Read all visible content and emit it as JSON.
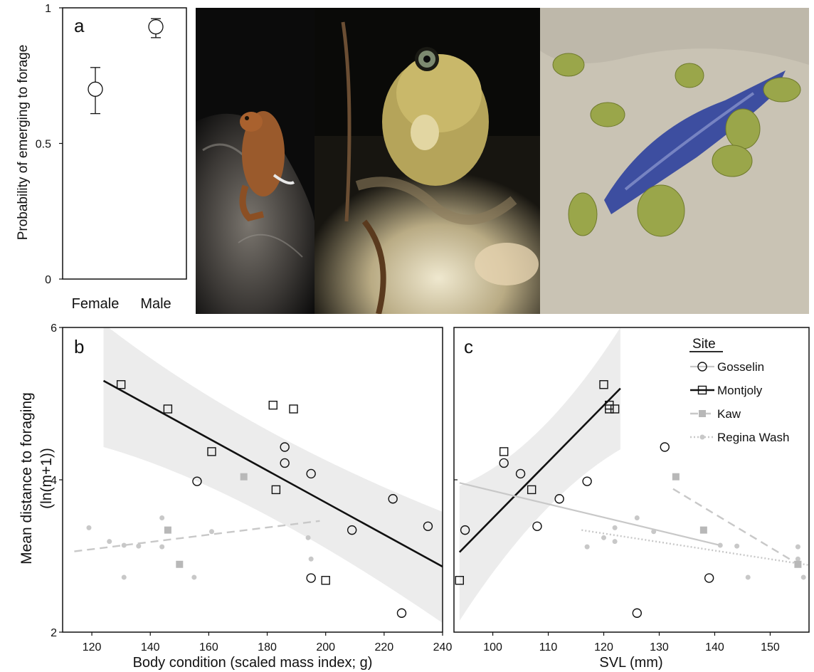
{
  "panel_labels": {
    "a": "a",
    "b": "b",
    "c": "c"
  },
  "photos": [
    {
      "subject": "cane toad on rock at night",
      "palette": [
        "#0b0b0b",
        "#5a5550",
        "#a9612e"
      ]
    },
    {
      "subject": "cane toad close-up among leaf litter",
      "palette": [
        "#0a0a08",
        "#c9b86a",
        "#e9e1c3"
      ]
    },
    {
      "subject": "cane toads around a fish carcass",
      "palette": [
        "#c9c3b4",
        "#9aa64a",
        "#3d4ea0"
      ]
    }
  ],
  "colors": {
    "black": "#111111",
    "grey": "#b8b8b8",
    "light_grey": "#c8c8c8",
    "band": "#ececec"
  },
  "chart_data": [
    {
      "id": "a",
      "type": "scatter",
      "ylabel": "Probability of emerging to forage",
      "categories": [
        "Female",
        "Male"
      ],
      "ylim": [
        0,
        1
      ],
      "yticks": [
        "0",
        "0.5",
        "1"
      ],
      "points": [
        {
          "category": "Female",
          "y": 0.7,
          "lo": 0.61,
          "hi": 0.78
        },
        {
          "category": "Male",
          "y": 0.93,
          "lo": 0.89,
          "hi": 0.96
        }
      ]
    },
    {
      "id": "b",
      "type": "scatter",
      "xlabel": "Body condition (scaled mass index; g)",
      "ylabel_line1": "Mean distance to foraging",
      "ylabel_line2": "(ln(m+1))",
      "xlim": [
        110,
        240
      ],
      "ylim": [
        2,
        6
      ],
      "xticks": [
        "120",
        "140",
        "160",
        "180",
        "200",
        "220",
        "240"
      ],
      "yticks": [
        "2",
        "4",
        "6"
      ],
      "series": [
        {
          "name": "Gosselin",
          "marker": "open-circle",
          "x": [
            156,
            186,
            186,
            195,
            195,
            209,
            223,
            226,
            235
          ],
          "y": [
            3.98,
            4.43,
            4.22,
            4.08,
            2.71,
            3.34,
            3.75,
            2.25,
            3.39
          ]
        },
        {
          "name": "Montjoly",
          "marker": "open-square",
          "x": [
            130,
            146,
            161,
            182,
            183,
            189,
            200
          ],
          "y": [
            5.25,
            4.93,
            4.37,
            4.98,
            3.87,
            4.93,
            2.68
          ]
        },
        {
          "name": "Kaw",
          "marker": "filled-square",
          "x": [
            146,
            150,
            172
          ],
          "y": [
            3.34,
            2.89,
            4.04
          ]
        },
        {
          "name": "Regina Wash",
          "marker": "filled-dot",
          "x": [
            119,
            126,
            131,
            131,
            136,
            144,
            144,
            155,
            161,
            194,
            195
          ],
          "y": [
            3.37,
            3.19,
            3.14,
            2.72,
            3.13,
            3.12,
            3.5,
            2.72,
            3.32,
            3.24,
            2.96
          ]
        }
      ],
      "fits": [
        {
          "series": "Montjoly",
          "style": "solid",
          "x": [
            124,
            240
          ],
          "y": [
            5.3,
            2.86
          ]
        },
        {
          "series": "Kaw",
          "style": "dashed",
          "x": [
            114,
            198
          ],
          "y": [
            3.06,
            3.46
          ]
        }
      ],
      "band": {
        "x": [
          124,
          240
        ],
        "upper": [
          6.05,
          3.58
        ],
        "lower": [
          4.43,
          2.12
        ],
        "mid_x": 172,
        "mid_upper": 4.62,
        "mid_lower": 3.91
      }
    },
    {
      "id": "c",
      "type": "scatter",
      "xlabel": "SVL (mm)",
      "xlim": [
        93,
        157
      ],
      "ylim": [
        2,
        6
      ],
      "xticks": [
        "100",
        "110",
        "120",
        "130",
        "140",
        "150"
      ],
      "legend": {
        "title": "Site",
        "position": "top-right",
        "entries": [
          "Gosselin",
          "Montjoly",
          "Kaw",
          "Regina Wash"
        ]
      },
      "series": [
        {
          "name": "Gosselin",
          "marker": "open-circle",
          "x": [
            95,
            102,
            105,
            108,
            112,
            117,
            126,
            131,
            139
          ],
          "y": [
            3.34,
            4.22,
            4.08,
            3.39,
            3.75,
            3.98,
            2.25,
            4.43,
            2.71
          ]
        },
        {
          "name": "Montjoly",
          "marker": "open-square",
          "x": [
            94,
            102,
            107,
            120,
            121,
            121,
            122
          ],
          "y": [
            2.68,
            4.37,
            3.87,
            5.25,
            4.98,
            4.93,
            4.93
          ]
        },
        {
          "name": "Kaw",
          "marker": "filled-square",
          "x": [
            133,
            138,
            155
          ],
          "y": [
            4.04,
            3.34,
            2.89
          ]
        },
        {
          "name": "Regina Wash",
          "marker": "filled-dot",
          "x": [
            117,
            120,
            122,
            122,
            126,
            129,
            141,
            144,
            146,
            155,
            155,
            156
          ],
          "y": [
            3.12,
            3.24,
            3.37,
            3.19,
            3.5,
            3.32,
            3.14,
            3.13,
            2.72,
            3.12,
            2.96,
            2.72
          ]
        }
      ],
      "fits": [
        {
          "series": "Montjoly",
          "style": "solid",
          "x": [
            94,
            123
          ],
          "y": [
            3.05,
            5.2
          ]
        },
        {
          "series": "Gosselin",
          "style": "solid-grey",
          "x": [
            94,
            141
          ],
          "y": [
            3.96,
            3.14
          ]
        },
        {
          "series": "Kaw",
          "style": "dashed",
          "x": [
            132.5,
            156
          ],
          "y": [
            3.88,
            2.85
          ]
        },
        {
          "series": "Regina Wash",
          "style": "dotted",
          "x": [
            116,
            157
          ],
          "y": [
            3.34,
            2.88
          ]
        }
      ],
      "band": {
        "x": [
          94,
          123
        ],
        "upper": [
          3.92,
          6.0
        ],
        "lower": [
          2.15,
          4.4
        ],
        "mid_x": 108.5,
        "mid_upper": 4.35,
        "mid_lower": 3.78
      }
    }
  ]
}
